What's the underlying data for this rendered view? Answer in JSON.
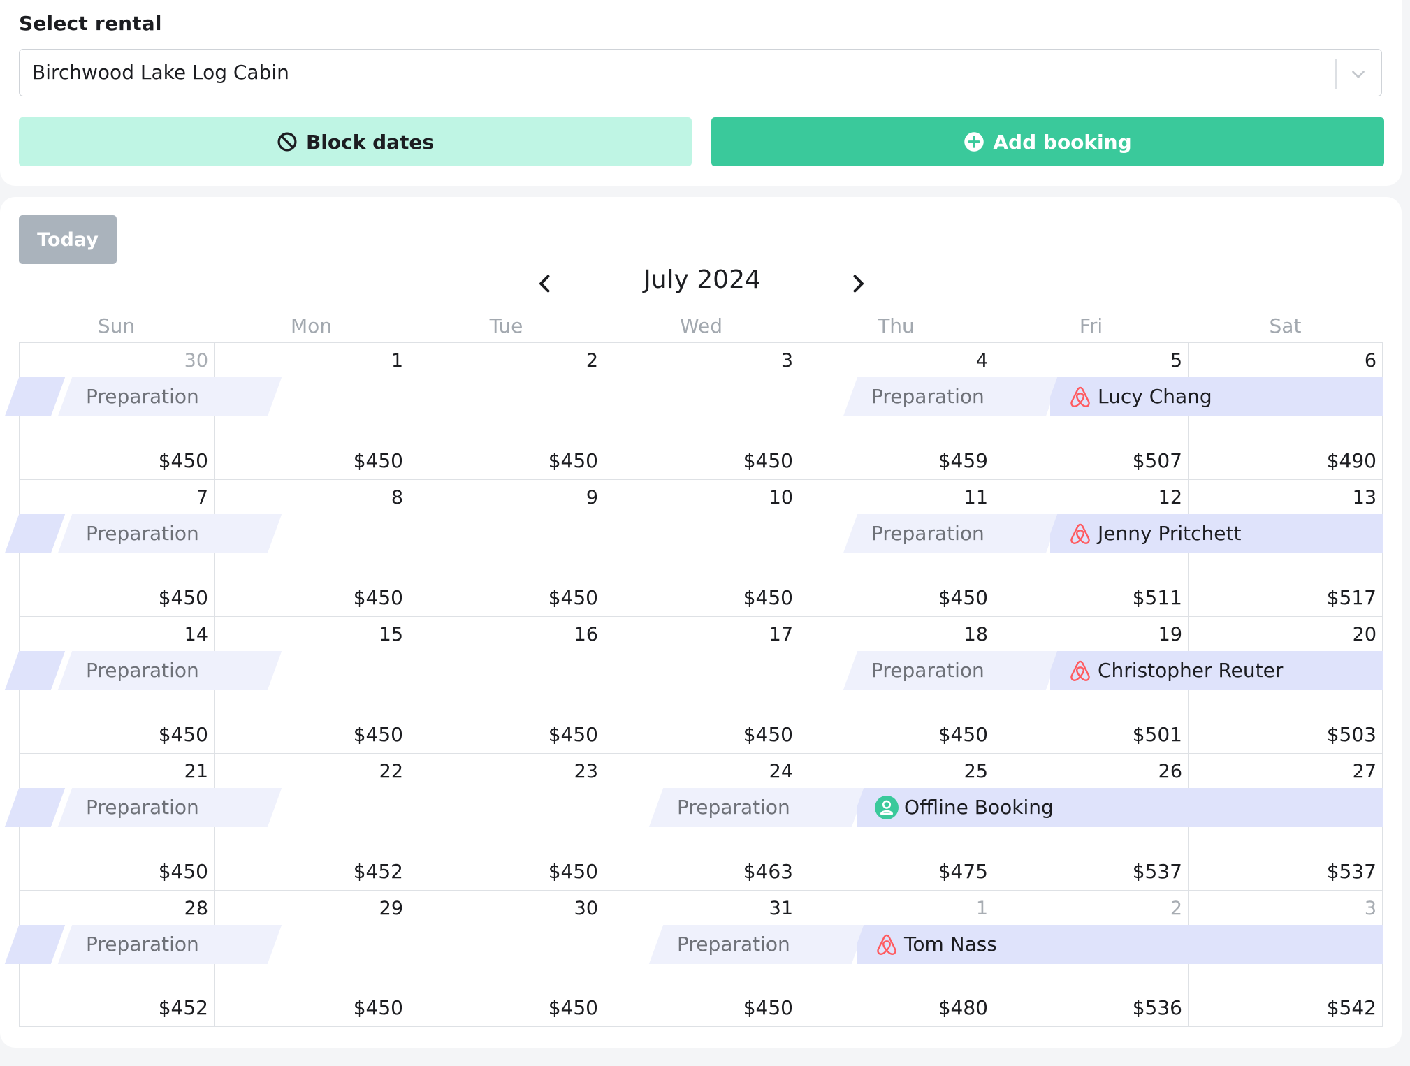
{
  "rental_selector": {
    "label": "Select rental",
    "selected": "Birchwood Lake Log Cabin"
  },
  "actions": {
    "block_dates": "Block dates",
    "add_booking": "Add booking"
  },
  "calendar": {
    "today_label": "Today",
    "month_title": "July 2024",
    "weekdays": [
      "Sun",
      "Mon",
      "Tue",
      "Wed",
      "Thu",
      "Fri",
      "Sat"
    ],
    "weeks": [
      {
        "days": [
          {
            "day": "30",
            "price": "$450",
            "muted": true
          },
          {
            "day": "1",
            "price": "$450"
          },
          {
            "day": "2",
            "price": "$450"
          },
          {
            "day": "3",
            "price": "$450"
          },
          {
            "day": "4",
            "price": "$459"
          },
          {
            "day": "5",
            "price": "$507"
          },
          {
            "day": "6",
            "price": "$490"
          }
        ],
        "events": [
          {
            "label": "Preparation",
            "type": "preparation"
          },
          {
            "label": "Preparation",
            "type": "preparation"
          },
          {
            "label": "Lucy Chang",
            "type": "booking",
            "icon": "airbnb-icon"
          }
        ]
      },
      {
        "days": [
          {
            "day": "7",
            "price": "$450"
          },
          {
            "day": "8",
            "price": "$450"
          },
          {
            "day": "9",
            "price": "$450"
          },
          {
            "day": "10",
            "price": "$450"
          },
          {
            "day": "11",
            "price": "$450"
          },
          {
            "day": "12",
            "price": "$511"
          },
          {
            "day": "13",
            "price": "$517"
          }
        ],
        "events": [
          {
            "label": "Preparation",
            "type": "preparation"
          },
          {
            "label": "Preparation",
            "type": "preparation"
          },
          {
            "label": "Jenny Pritchett",
            "type": "booking",
            "icon": "airbnb-icon"
          }
        ]
      },
      {
        "days": [
          {
            "day": "14",
            "price": "$450"
          },
          {
            "day": "15",
            "price": "$450"
          },
          {
            "day": "16",
            "price": "$450"
          },
          {
            "day": "17",
            "price": "$450"
          },
          {
            "day": "18",
            "price": "$450"
          },
          {
            "day": "19",
            "price": "$501"
          },
          {
            "day": "20",
            "price": "$503"
          }
        ],
        "events": [
          {
            "label": "Preparation",
            "type": "preparation"
          },
          {
            "label": "Preparation",
            "type": "preparation"
          },
          {
            "label": "Christopher Reuter",
            "type": "booking",
            "icon": "airbnb-icon"
          }
        ]
      },
      {
        "days": [
          {
            "day": "21",
            "price": "$450"
          },
          {
            "day": "22",
            "price": "$452"
          },
          {
            "day": "23",
            "price": "$450"
          },
          {
            "day": "24",
            "price": "$463"
          },
          {
            "day": "25",
            "price": "$475"
          },
          {
            "day": "26",
            "price": "$537"
          },
          {
            "day": "27",
            "price": "$537"
          }
        ],
        "events": [
          {
            "label": "Preparation",
            "type": "preparation"
          },
          {
            "label": "Preparation",
            "type": "preparation"
          },
          {
            "label": "Offline Booking",
            "type": "booking",
            "icon": "user-icon"
          }
        ]
      },
      {
        "days": [
          {
            "day": "28",
            "price": "$452"
          },
          {
            "day": "29",
            "price": "$450"
          },
          {
            "day": "30",
            "price": "$450"
          },
          {
            "day": "31",
            "price": "$450"
          },
          {
            "day": "1",
            "price": "$480",
            "muted": true
          },
          {
            "day": "2",
            "price": "$536",
            "muted": true
          },
          {
            "day": "3",
            "price": "$542",
            "muted": true
          }
        ],
        "events": [
          {
            "label": "Preparation",
            "type": "preparation"
          },
          {
            "label": "Preparation",
            "type": "preparation"
          },
          {
            "label": "Tom Nass",
            "type": "booking",
            "icon": "airbnb-icon"
          }
        ]
      }
    ]
  },
  "colors": {
    "accent": "#3ac99b",
    "accent_light": "#bff5e4",
    "booking_bar": "#dfe3fb",
    "preparation_bar": "#eff1fc",
    "airbnb": "#ff5a5f",
    "today_button": "#aab3bc"
  }
}
